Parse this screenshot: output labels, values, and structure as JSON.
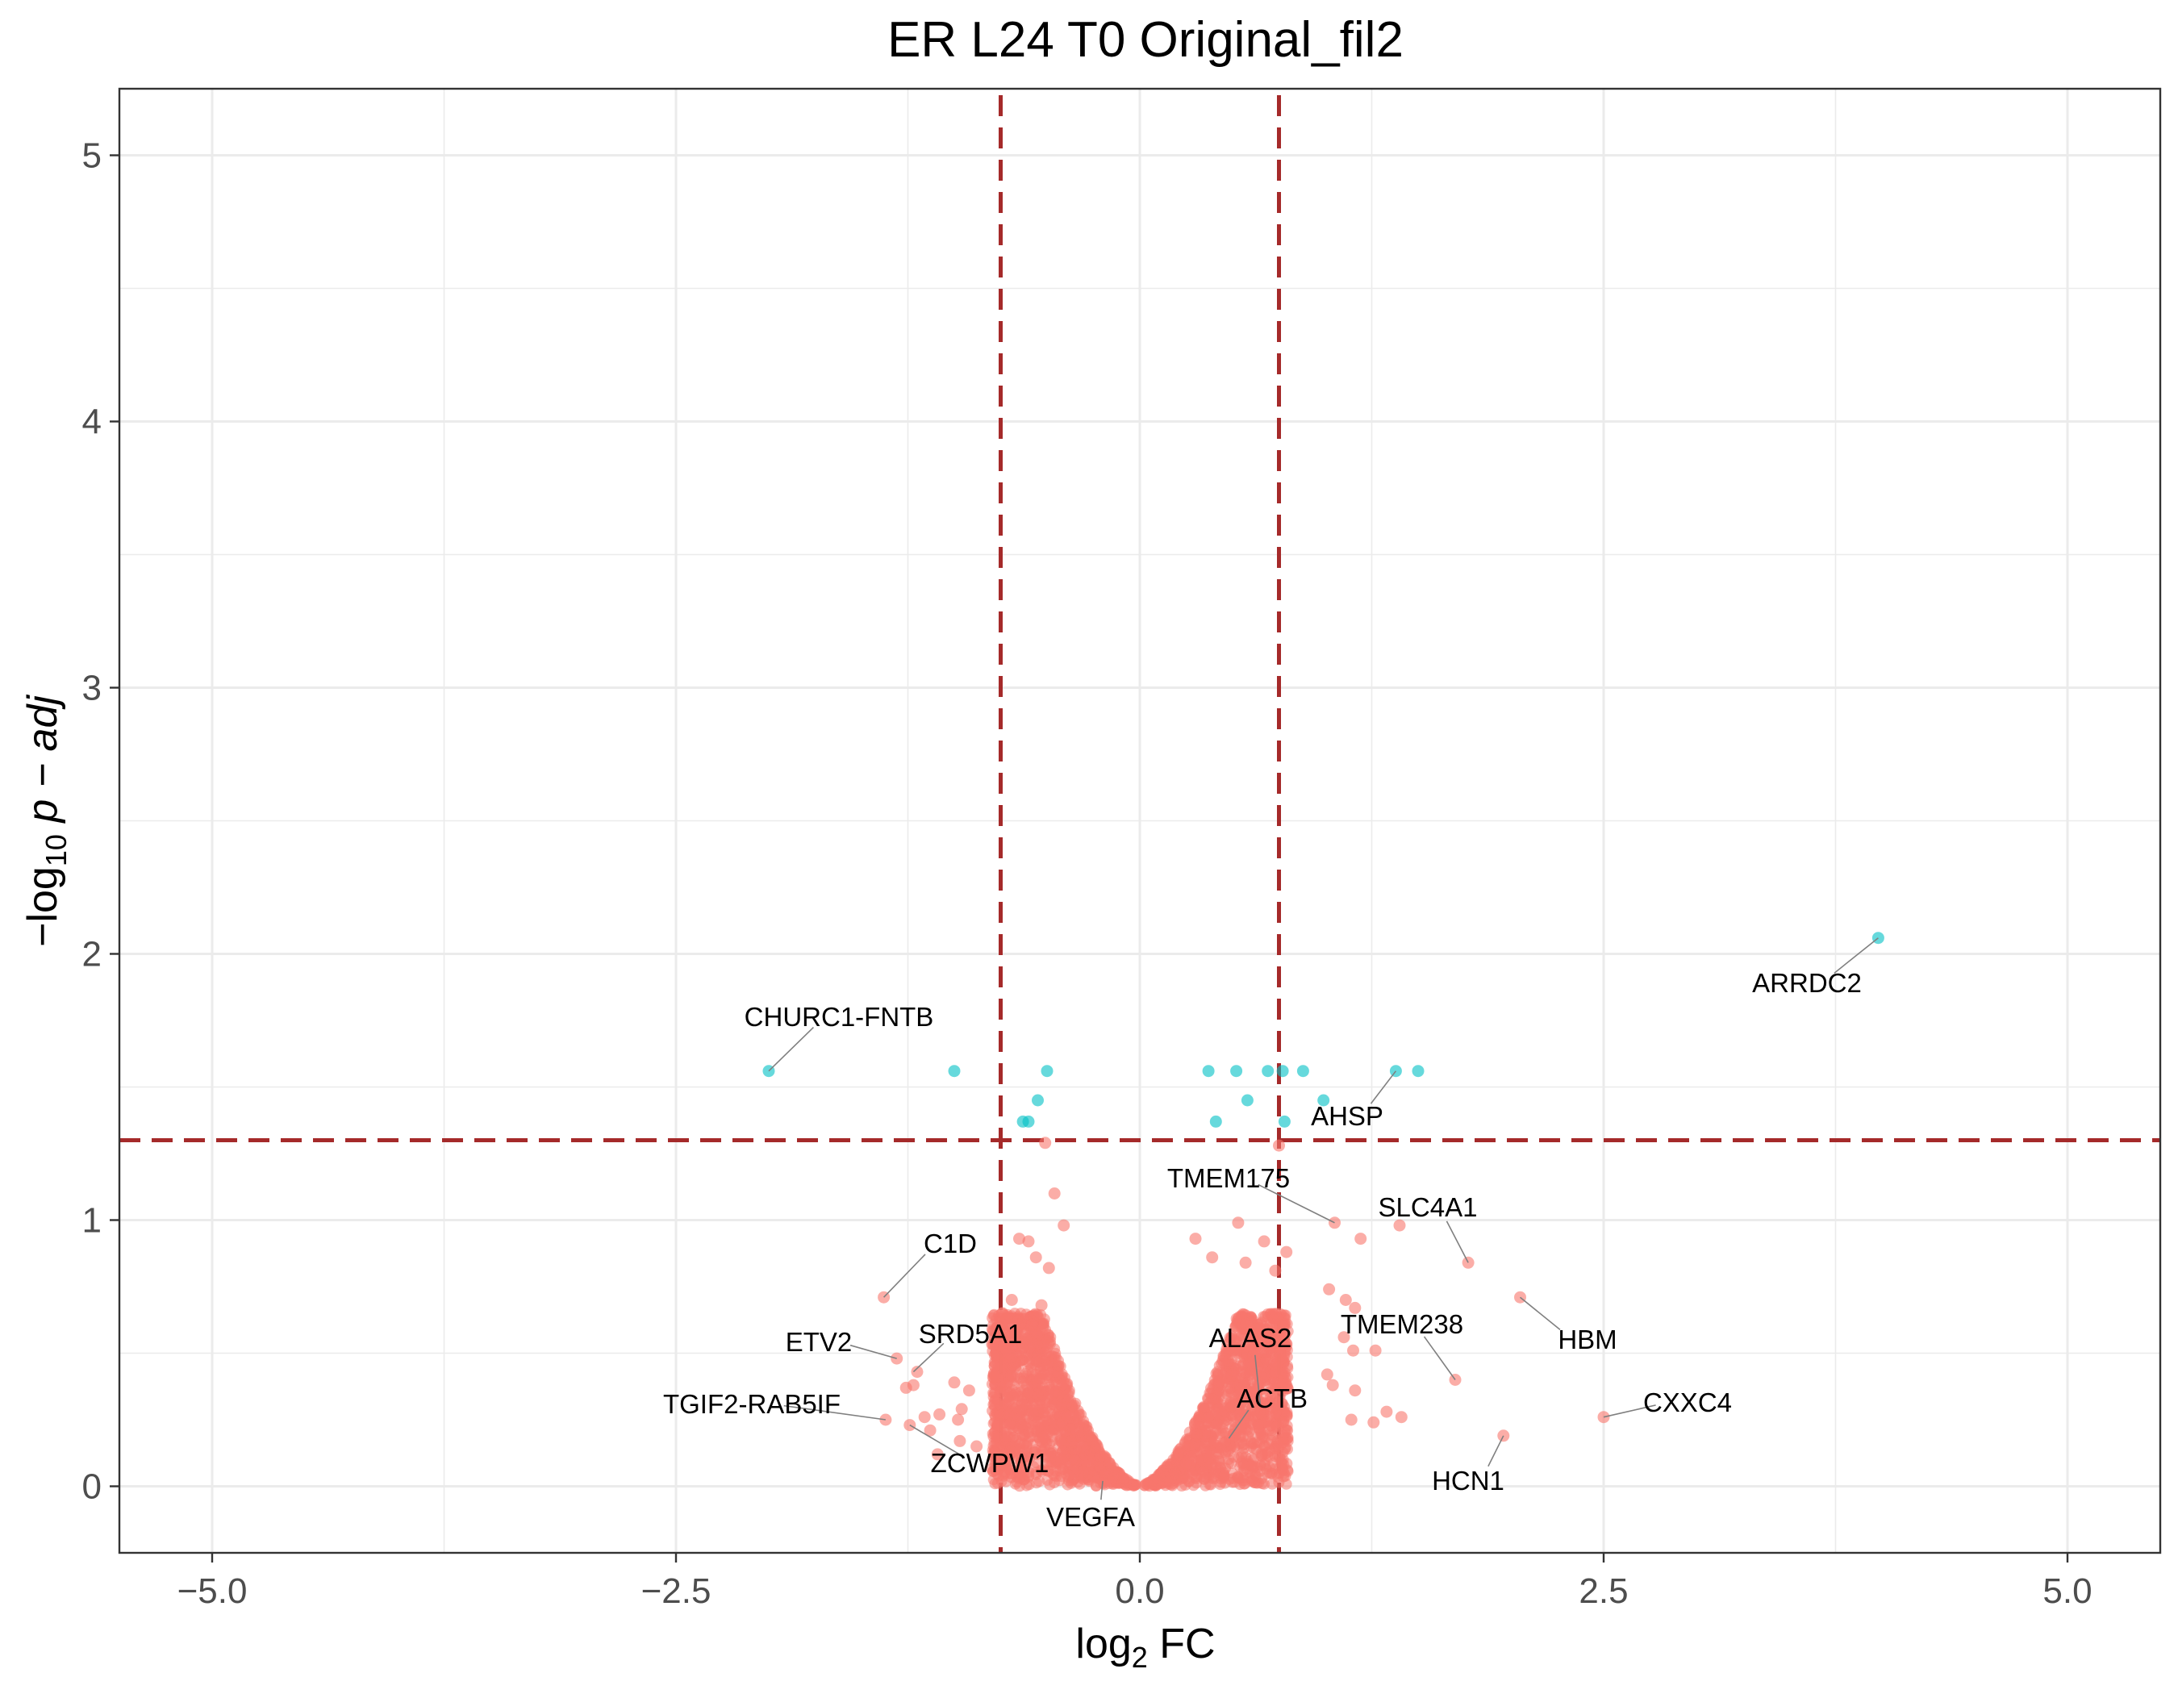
{
  "chart_data": {
    "type": "scatter",
    "title": "ER L24 T0 Original_fil2",
    "xlabel": "log2 FC",
    "ylabel": "-log10 p-adj",
    "xlim": [
      -5.5,
      5.5
    ],
    "ylim": [
      -0.25,
      5.25
    ],
    "x_ticks": [
      "-5.0",
      "-2.5",
      "0.0",
      "2.5",
      "5.0"
    ],
    "x_tick_values": [
      -5,
      -2.5,
      0,
      2.5,
      5
    ],
    "y_ticks": [
      "0",
      "1",
      "2",
      "3",
      "4",
      "5"
    ],
    "y_tick_values": [
      0,
      1,
      2,
      3,
      4,
      5
    ],
    "grid": true,
    "legend": "none",
    "thresholds": {
      "log2fc": [
        -0.75,
        0.75
      ],
      "neg_log10_padj": 1.3
    },
    "colors": {
      "significant": "#00BFC4",
      "not_significant": "#F8766D",
      "threshold_line": "#A52A2A"
    },
    "series": [
      {
        "group": "significant",
        "points": [
          {
            "x": 3.98,
            "y": 2.06
          },
          {
            "x": -2.0,
            "y": 1.56
          },
          {
            "x": -1.0,
            "y": 1.56
          },
          {
            "x": -0.5,
            "y": 1.56
          },
          {
            "x": -0.55,
            "y": 1.45
          },
          {
            "x": -0.6,
            "y": 1.37
          },
          {
            "x": -0.63,
            "y": 1.37
          },
          {
            "x": 0.37,
            "y": 1.56
          },
          {
            "x": 0.52,
            "y": 1.56
          },
          {
            "x": 0.69,
            "y": 1.56
          },
          {
            "x": 0.77,
            "y": 1.56
          },
          {
            "x": 0.88,
            "y": 1.56
          },
          {
            "x": 1.38,
            "y": 1.56
          },
          {
            "x": 1.5,
            "y": 1.56
          },
          {
            "x": 0.58,
            "y": 1.45
          },
          {
            "x": 0.99,
            "y": 1.45
          },
          {
            "x": 0.41,
            "y": 1.37
          },
          {
            "x": 0.78,
            "y": 1.37
          }
        ]
      },
      {
        "group": "not_significant",
        "points": [
          {
            "x": -0.51,
            "y": 1.29
          },
          {
            "x": -0.46,
            "y": 1.1
          },
          {
            "x": -0.41,
            "y": 0.98
          },
          {
            "x": -0.65,
            "y": 0.93
          },
          {
            "x": -0.6,
            "y": 0.92
          },
          {
            "x": 0.3,
            "y": 0.93
          },
          {
            "x": 0.53,
            "y": 0.99
          },
          {
            "x": 0.75,
            "y": 1.28
          },
          {
            "x": 1.05,
            "y": 0.99
          },
          {
            "x": 1.19,
            "y": 0.93
          },
          {
            "x": 1.4,
            "y": 0.98
          },
          {
            "x": 1.77,
            "y": 0.84
          },
          {
            "x": 1.02,
            "y": 0.74
          },
          {
            "x": 1.11,
            "y": 0.7
          },
          {
            "x": 1.16,
            "y": 0.67
          },
          {
            "x": 2.05,
            "y": 0.71
          },
          {
            "x": 1.1,
            "y": 0.56
          },
          {
            "x": 1.15,
            "y": 0.51
          },
          {
            "x": 1.27,
            "y": 0.51
          },
          {
            "x": 1.7,
            "y": 0.4
          },
          {
            "x": 1.01,
            "y": 0.42
          },
          {
            "x": 1.04,
            "y": 0.38
          },
          {
            "x": 1.16,
            "y": 0.36
          },
          {
            "x": 1.33,
            "y": 0.28
          },
          {
            "x": 1.41,
            "y": 0.26
          },
          {
            "x": 1.26,
            "y": 0.24
          },
          {
            "x": 1.14,
            "y": 0.25
          },
          {
            "x": 1.96,
            "y": 0.19
          },
          {
            "x": 2.5,
            "y": 0.26
          },
          {
            "x": -1.38,
            "y": 0.71
          },
          {
            "x": -1.31,
            "y": 0.48
          },
          {
            "x": -1.2,
            "y": 0.43
          },
          {
            "x": -1.22,
            "y": 0.38
          },
          {
            "x": -1.26,
            "y": 0.37
          },
          {
            "x": -1.0,
            "y": 0.39
          },
          {
            "x": -0.92,
            "y": 0.36
          },
          {
            "x": -0.79,
            "y": 0.41
          },
          {
            "x": -1.37,
            "y": 0.25
          },
          {
            "x": -1.24,
            "y": 0.23
          },
          {
            "x": -1.16,
            "y": 0.26
          },
          {
            "x": -1.08,
            "y": 0.27
          },
          {
            "x": -0.98,
            "y": 0.25
          },
          {
            "x": -1.13,
            "y": 0.21
          },
          {
            "x": -0.97,
            "y": 0.17
          },
          {
            "x": -0.96,
            "y": 0.29
          },
          {
            "x": -1.09,
            "y": 0.12
          },
          {
            "x": -0.88,
            "y": 0.15
          },
          {
            "x": -0.69,
            "y": 0.7
          },
          {
            "x": -0.74,
            "y": 0.65
          },
          {
            "x": -0.53,
            "y": 0.68
          },
          {
            "x": -0.49,
            "y": 0.82
          },
          {
            "x": -0.56,
            "y": 0.86
          },
          {
            "x": 0.39,
            "y": 0.86
          },
          {
            "x": 0.57,
            "y": 0.84
          },
          {
            "x": 0.67,
            "y": 0.92
          },
          {
            "x": 0.79,
            "y": 0.88
          },
          {
            "x": 0.73,
            "y": 0.81
          }
        ]
      }
    ],
    "dense_cloud": "not_significant points concentrated in two lobes around x = -0.75..-0.3 and x = 0.3..0.8 with y < 0.7, converging to (0, 0)",
    "annotations": [
      {
        "label": "ARRDC2",
        "x": 3.98,
        "y": 2.06
      },
      {
        "label": "CHURC1-FNTB",
        "x": -2.0,
        "y": 1.56
      },
      {
        "label": "AHSP",
        "x": 1.38,
        "y": 1.56
      },
      {
        "label": "TMEM175",
        "x": 1.05,
        "y": 0.99
      },
      {
        "label": "SLC4A1",
        "x": 1.77,
        "y": 0.84
      },
      {
        "label": "C1D",
        "x": -1.38,
        "y": 0.71
      },
      {
        "label": "HBM",
        "x": 2.05,
        "y": 0.71
      },
      {
        "label": "TMEM238",
        "x": 1.7,
        "y": 0.4
      },
      {
        "label": "ALAS2",
        "x": 0.65,
        "y": 0.3
      },
      {
        "label": "SRD5A1",
        "x": -1.22,
        "y": 0.43
      },
      {
        "label": "ETV2",
        "x": -1.31,
        "y": 0.48
      },
      {
        "label": "TGIF2-RAB5IF",
        "x": -1.37,
        "y": 0.25
      },
      {
        "label": "CXXC4",
        "x": 2.5,
        "y": 0.26
      },
      {
        "label": "ACTB",
        "x": 0.48,
        "y": 0.18
      },
      {
        "label": "ZCWPW1",
        "x": -1.24,
        "y": 0.23
      },
      {
        "label": "HCN1",
        "x": 1.96,
        "y": 0.19
      },
      {
        "label": "VEGFA",
        "x": -0.2,
        "y": 0.02
      }
    ]
  }
}
